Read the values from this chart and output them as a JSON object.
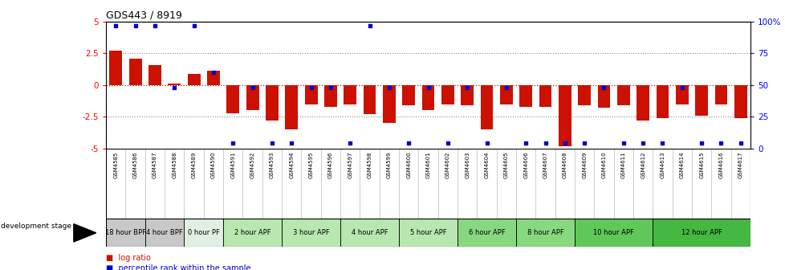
{
  "title": "GDS443 / 8919",
  "samples": [
    "GSM4585",
    "GSM4586",
    "GSM4587",
    "GSM4588",
    "GSM4589",
    "GSM4590",
    "GSM4591",
    "GSM4592",
    "GSM4593",
    "GSM4594",
    "GSM4595",
    "GSM4596",
    "GSM4597",
    "GSM4598",
    "GSM4599",
    "GSM4600",
    "GSM4601",
    "GSM4602",
    "GSM4603",
    "GSM4604",
    "GSM4605",
    "GSM4606",
    "GSM4607",
    "GSM4608",
    "GSM4609",
    "GSM4610",
    "GSM4611",
    "GSM4612",
    "GSM4613",
    "GSM4614",
    "GSM4615",
    "GSM4616",
    "GSM4617"
  ],
  "log_ratio": [
    2.7,
    2.1,
    1.6,
    0.1,
    0.85,
    1.1,
    -2.2,
    -2.0,
    -2.8,
    -3.5,
    -1.5,
    -1.7,
    -1.5,
    -2.3,
    -3.0,
    -1.6,
    -2.0,
    -1.5,
    -1.6,
    -3.5,
    -1.5,
    -1.7,
    -1.7,
    -4.8,
    -1.6,
    -1.8,
    -1.6,
    -2.8,
    -2.6,
    -1.5,
    -2.4,
    -1.5,
    -2.6
  ],
  "percentile": [
    97,
    97,
    97,
    48,
    97,
    60,
    4,
    48,
    4,
    4,
    48,
    48,
    4,
    97,
    48,
    4,
    48,
    4,
    48,
    4,
    48,
    4,
    4,
    4,
    4,
    48,
    4,
    4,
    4,
    48,
    4,
    4,
    4
  ],
  "stages": [
    {
      "label": "18 hour BPF",
      "start": 0,
      "end": 2,
      "color": "#c8c8c8"
    },
    {
      "label": "4 hour BPF",
      "start": 2,
      "end": 4,
      "color": "#c8c8c8"
    },
    {
      "label": "0 hour PF",
      "start": 4,
      "end": 6,
      "color": "#e0f0e0"
    },
    {
      "label": "2 hour APF",
      "start": 6,
      "end": 9,
      "color": "#b8e8b0"
    },
    {
      "label": "3 hour APF",
      "start": 9,
      "end": 12,
      "color": "#b8e8b0"
    },
    {
      "label": "4 hour APF",
      "start": 12,
      "end": 15,
      "color": "#b8e8b0"
    },
    {
      "label": "5 hour APF",
      "start": 15,
      "end": 18,
      "color": "#b8e8b0"
    },
    {
      "label": "6 hour APF",
      "start": 18,
      "end": 21,
      "color": "#88d880"
    },
    {
      "label": "8 hour APF",
      "start": 21,
      "end": 24,
      "color": "#88d880"
    },
    {
      "label": "10 hour APF",
      "start": 24,
      "end": 28,
      "color": "#60c858"
    },
    {
      "label": "12 hour APF",
      "start": 28,
      "end": 33,
      "color": "#44b840"
    }
  ],
  "ylim": [
    -5,
    5
  ],
  "bar_color": "#cc1100",
  "percentile_color": "#0000cc",
  "gray_dot_color": "#888888",
  "zero_line_color": "#cc1100",
  "background_color": "#ffffff",
  "label_bg_color": "#d4d4d4"
}
